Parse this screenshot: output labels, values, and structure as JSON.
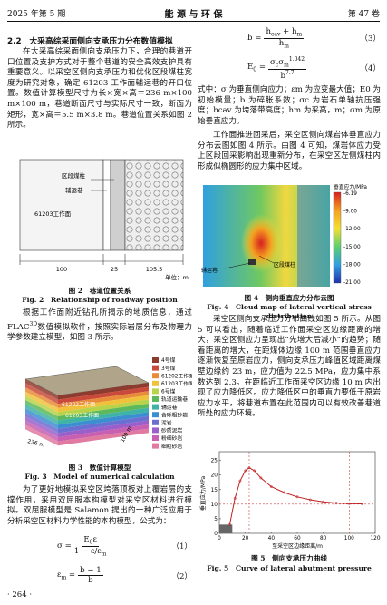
{
  "header": {
    "issue": "2025 年第 5 期",
    "journal": "能 源 与 环 保",
    "volume": "第 47 卷"
  },
  "section_heading": "2.2　大采高综采面侧向支承压力分布数值模拟",
  "left_paragraphs": [
    "在大采高综采面侧向支承压力下，合理的巷道开口位置及支护方式对于整个巷道的安全高效支护具有重要意义。以采空区侧向支承压力和优化区段煤柱宽度为研究对象，确定 61203 工作面辅运巷的开口位置。数值计算模型尺寸为长×宽×高＝236 m×100 m×100 m，巷道断面尺寸与实际尺寸一致，断面为矩形，宽×高＝5.5 m×3.8 m。巷道位置关系如图 2 所示。"
  ],
  "flac_paragraph": {
    "before": "根据工作面附近钻孔所揭示的地质信息，通过 FLAC",
    "sup": "3D",
    "after": "数值模拟软件，按照实际岩层分布及物理力学参数建立模型，如图 3 所示。"
  },
  "model_paragraph": "为了更好地模拟采空区垮落顶板对上覆岩层的支撑作用，采用双屈服本构模型对采空区材料进行模拟。双屈服模型是 Salamon 提出的一种广泛应用于分析采空区材料力学性能的本构模型，公式为：",
  "equations": [
    {
      "lhs": [
        [
          "σ"
        ],
        [
          " ="
        ]
      ],
      "num": [
        [
          "E"
        ],
        [
          "0",
          "sub"
        ],
        [
          "ε"
        ]
      ],
      "den": [
        [
          "1 − "
        ],
        [
          "ε"
        ],
        [
          "/ε"
        ],
        [
          "m",
          "sub"
        ]
      ],
      "number": "（1）"
    },
    {
      "lhs": [
        [
          "ε"
        ],
        [
          "m",
          "sub"
        ],
        [
          " ="
        ]
      ],
      "num": [
        [
          "b − 1"
        ]
      ],
      "den": [
        [
          "b"
        ]
      ],
      "number": "（2）"
    },
    {
      "lhs": [
        [
          "b"
        ],
        [
          " ="
        ]
      ],
      "num": [
        [
          "h"
        ],
        [
          "cav",
          "sub"
        ],
        [
          " + h"
        ],
        [
          "m",
          "sub"
        ]
      ],
      "den": [
        [
          "h"
        ],
        [
          "m",
          "sub"
        ]
      ],
      "number": "（3）"
    },
    {
      "lhs": [
        [
          "E"
        ],
        [
          "0",
          "sub"
        ],
        [
          " ="
        ]
      ],
      "num": [
        [
          "σ"
        ],
        [
          "c",
          "sub"
        ],
        [
          "σ"
        ],
        [
          "m",
          "sub"
        ],
        [
          "1.042",
          "sup"
        ]
      ],
      "den": [
        [
          "b"
        ],
        [
          "7.7",
          "sup"
        ]
      ],
      "number": "（4）"
    }
  ],
  "symbols_paragraph": "式中：σ 为垂直侧向应力；εm 为应变最大值；E0 为初始模量；b 为碎胀系数；σc 为岩石单轴抗压强度；hcav 为垮落带高度；hm 为采高，m；σm 为原始垂直应力。",
  "right_paragraphs": [
    "工作面推进回采后，采空区侧向煤岩体垂直应力分布云图如图 4 所示。由图 4 可知，煤岩体应力受上区段回采影响出现重新分布，在采空区左侧煤柱内形成似椭圆形的应力集中区域。",
    "采空区侧向支承压力分布曲线如图 5 所示。从图 5 可以看出，随着临近工作面采空区边缘距离的增大，采空区侧应力呈现出“先增大后减小”的趋势；随着距离的增大，在距煤体边缘 100 m 范围垂直应力逐渐恢复至原岩应力，侧向支承压力峰值区域距离煤壁边缘约 23 m，应力值为 22.5 MPa，应力集中系数达到 2.3。在距临近工作面采空区边缘 10 m 内出现了应力降低区。应力降低区中的垂直力要低于原岩应力水平，将巷道布置在此范围内可以有效改善巷道所处的应力环境。"
  ],
  "fig2": {
    "labels": [
      "区段煤柱",
      "辅运巷",
      "61203工作面"
    ],
    "dims": [
      "100",
      "25",
      "105.5"
    ],
    "unit": "单位：m",
    "caption_cn": "图 2　巷道位置关系",
    "caption_en": "Fig. 2　Relationship of roadway position"
  },
  "fig3": {
    "legend": [
      {
        "name": "4号煤",
        "color": "#8e3b2f"
      },
      {
        "name": "3号煤",
        "color": "#c94a3a"
      },
      {
        "name": "61202工作面",
        "color": "#e88c3a"
      },
      {
        "name": "61203工作面",
        "color": "#f0c23c"
      },
      {
        "name": "6号煤",
        "color": "#b8d24a"
      },
      {
        "name": "轨道运输巷",
        "color": "#5cb85c"
      },
      {
        "name": "辅运巷",
        "color": "#3fb3a6"
      },
      {
        "name": "含砾粗砂岩",
        "color": "#3b8fd0"
      },
      {
        "name": "泥岩",
        "color": "#6a6fd1"
      },
      {
        "name": "砂质泥岩",
        "color": "#9b5fc9"
      },
      {
        "name": "粉细砂岩",
        "color": "#c85fb0"
      },
      {
        "name": "细粒砂岩",
        "color": "#e07aa0"
      }
    ],
    "labels": [
      "61202工作面",
      "61203工作面",
      "236 m",
      "100 m"
    ],
    "caption_cn": "图 3　数值计算模型",
    "caption_en": "Fig. 3　Model of numerical calculation"
  },
  "fig4": {
    "colorbar_title": "垂直应力/MPa",
    "colorbar": [
      "-6.19",
      "-9.00",
      "-12.00",
      "-15.00",
      "-18.00",
      "-21.00"
    ],
    "labels": [
      "辅运巷",
      "区段煤柱"
    ],
    "caption_cn": "图 4　侧向垂直应力分布云图",
    "caption_en": "Fig. 4　Cloud map of lateral vertical stress distribution"
  },
  "fig5": {
    "y_label": "垂直应力/MPa",
    "x_label": "至采空区边缘距离/m",
    "xlim": [
      0,
      120
    ],
    "ylim": [
      0,
      28
    ],
    "xticks": [
      0,
      20,
      40,
      60,
      80,
      100,
      120
    ],
    "yticks": [
      0,
      5,
      10,
      15,
      20,
      25
    ],
    "x": [
      8,
      12,
      16,
      20,
      23,
      27,
      32,
      40,
      50,
      60,
      70,
      80,
      90,
      100,
      110
    ],
    "y": [
      3,
      12,
      18,
      21.5,
      22.5,
      21.5,
      19,
      16,
      14,
      12.5,
      11.5,
      10.8,
      10.4,
      10.2,
      10.1
    ],
    "original_stress": 10,
    "peak_x": 23,
    "recover_x": 100,
    "low_zone": [
      0,
      10
    ],
    "low_zone_top": 3,
    "caption_cn": "图 5　侧向支承压力曲线",
    "caption_en": "Fig. 5　Curve of lateral abutment pressure"
  },
  "page_number": "· 264 ·"
}
